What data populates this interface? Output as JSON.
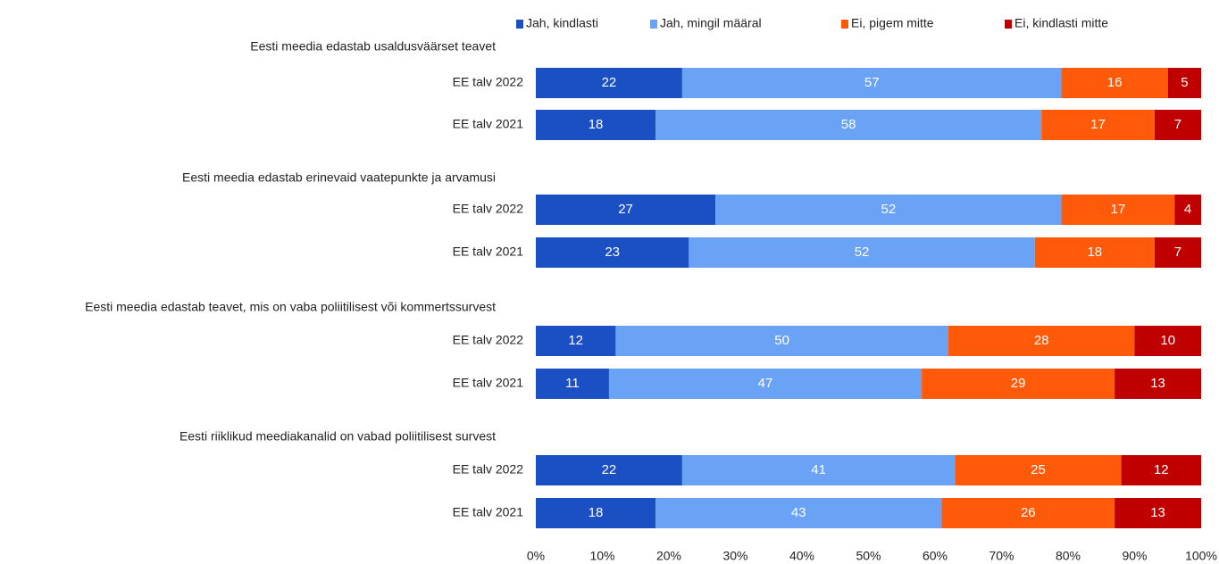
{
  "chart_data": {
    "type": "stacked-bar-horizontal",
    "group_titles": [
      "Eesti meedia edastab usaldusväärset teavet",
      "Eesti meedia edastab erinevaid vaatepunkte ja arvamusi",
      "Eesti meedia edastab teavet, mis on vaba poliitilisest või kommertssurvest",
      "Eesti riiklikud meediakanalid on vabad poliitilisest survest"
    ],
    "categories": [
      "EE talv 2022",
      "EE talv 2021",
      "EE talv 2022",
      "EE talv 2021",
      "EE talv 2022",
      "EE talv 2021",
      "EE talv 2022",
      "EE talv 2021"
    ],
    "series": [
      {
        "name": "Jah, kindlasti",
        "color": "#1b4fc4",
        "values": [
          22,
          18,
          27,
          23,
          12,
          11,
          22,
          18
        ]
      },
      {
        "name": "Jah, mingil määral",
        "color": "#6aa2f5",
        "values": [
          57,
          58,
          52,
          52,
          50,
          47,
          41,
          43
        ]
      },
      {
        "name": "Ei, pigem mitte",
        "color": "#ff5a0a",
        "values": [
          16,
          17,
          17,
          18,
          28,
          29,
          25,
          26
        ]
      },
      {
        "name": "Ei, kindlasti mitte",
        "color": "#c00000",
        "values": [
          5,
          7,
          4,
          7,
          10,
          13,
          12,
          13
        ]
      }
    ],
    "xlim": [
      0,
      100
    ],
    "xticks": [
      {
        "value": 0,
        "label": "0%"
      },
      {
        "value": 10,
        "label": "10%"
      },
      {
        "value": 20,
        "label": "20%"
      },
      {
        "value": 30,
        "label": "30%"
      },
      {
        "value": 40,
        "label": "40%"
      },
      {
        "value": 50,
        "label": "50%"
      },
      {
        "value": 60,
        "label": "60%"
      },
      {
        "value": 70,
        "label": "70%"
      },
      {
        "value": 80,
        "label": "80%"
      },
      {
        "value": 90,
        "label": "90%"
      },
      {
        "value": 100,
        "label": "100%"
      }
    ],
    "legend": "top"
  }
}
